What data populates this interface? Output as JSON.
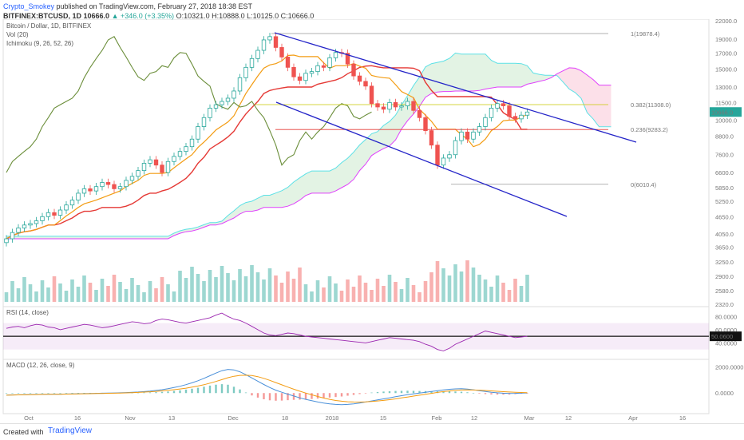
{
  "header": {
    "author": "Crypto_Smokey",
    "published_text": "published on TradingView.com, February 27, 2018 18:38 EST",
    "symbol": "BITFINEX:BTCUSD, 1D",
    "last": "10666.0",
    "change": "▲ +346.0 (+3.35%)",
    "ohlc": "O:10321.0 H:10888.0 L:10125.0 C:10666.0"
  },
  "legend": {
    "main": "Bitcoin / Dollar, 1D, BITFINEX",
    "vol": "Vol (20)",
    "ichimoku": "Ichimoku (9, 26, 52, 26)",
    "rsi": "RSI (14, close)",
    "macd": "MACD (12, 26, close, 9)"
  },
  "footer": {
    "created_with": "Created with",
    "brand": "TradingView"
  },
  "colors": {
    "up": "#26a69a",
    "down": "#ef5350",
    "channel": "#2424c8",
    "tenkan": "#e53935",
    "kijun": "#f39c12",
    "lagging": "#6b8e3a",
    "spanA": "#5ce1e6",
    "spanB": "#e040fb",
    "rsi": "#9c27b0",
    "macd": "#4a90d9",
    "signal": "#f39c12"
  },
  "chart_data": {
    "type": "candlestick",
    "title": "Bitcoin / Dollar, 1D, BITFINEX",
    "x_ticks": [
      "Oct",
      "16",
      "Nov",
      "13",
      "Dec",
      "18",
      "2018",
      "15",
      "Feb",
      "12",
      "Mar",
      "12",
      "Apr",
      "16"
    ],
    "y_ticks": [
      "22000.0",
      "19000.0",
      "17000.0",
      "15000.0",
      "13000.0",
      "11500.0",
      "10000.0",
      "8800.0",
      "7600.0",
      "6600.0",
      "5850.0",
      "5250.0",
      "4650.0",
      "4050.0",
      "3650.0",
      "3250.0",
      "2900.0",
      "2580.0",
      "2320.0"
    ],
    "last_price_label": "10666.0",
    "fib_levels": [
      {
        "label": "1(19878.4)",
        "value": 19878.4
      },
      {
        "label": "0.382(11308.0)",
        "value": 11308.0
      },
      {
        "label": "0.236(9283.2)",
        "value": 9283.2
      },
      {
        "label": "0(6010.4)",
        "value": 6010.4
      }
    ],
    "closes": [
      3900,
      4100,
      4250,
      4350,
      4400,
      4500,
      4650,
      4800,
      4700,
      4900,
      5100,
      5300,
      5600,
      5800,
      5700,
      5900,
      6100,
      6000,
      5800,
      5900,
      6200,
      6400,
      6700,
      7100,
      7300,
      7000,
      6600,
      7200,
      7500,
      7800,
      8100,
      8600,
      9500,
      10200,
      11000,
      11300,
      11600,
      11900,
      12600,
      14000,
      15200,
      16300,
      17400,
      18900,
      19400,
      17800,
      16500,
      15200,
      14100,
      13700,
      14500,
      14700,
      15400,
      15200,
      16400,
      17100,
      17000,
      15600,
      14200,
      13600,
      13100,
      11400,
      11100,
      10900,
      11500,
      11100,
      11200,
      11600,
      10800,
      10200,
      9200,
      8200,
      7000,
      7400,
      7600,
      8500,
      9100,
      8600,
      9100,
      9500,
      10200,
      11000,
      11400,
      11200,
      10300,
      10100,
      10400,
      10666
    ],
    "rsi": {
      "label": "RSI (14, close)",
      "current": "50.0600",
      "y_ticks": [
        "80.0000",
        "60.0000",
        "40.0000"
      ],
      "values": [
        62,
        64,
        65,
        63,
        66,
        68,
        67,
        64,
        63,
        60,
        62,
        64,
        66,
        68,
        67,
        65,
        63,
        64,
        66,
        68,
        70,
        72,
        71,
        69,
        70,
        74,
        76,
        75,
        73,
        71,
        70,
        72,
        74,
        76,
        78,
        82,
        85,
        80,
        76,
        74,
        70,
        65,
        60,
        55,
        52,
        51,
        53,
        55,
        54,
        52,
        50,
        49,
        48,
        47,
        46,
        45,
        44,
        43,
        42,
        41,
        40,
        42,
        44,
        46,
        48,
        47,
        46,
        45,
        44,
        42,
        38,
        35,
        30,
        28,
        32,
        38,
        42,
        46,
        50,
        54,
        58,
        56,
        54,
        52,
        50,
        48,
        49,
        50
      ]
    },
    "macd": {
      "label": "MACD (12, 26, close, 9)",
      "y_ticks": [
        "2000.0000",
        "0.0000"
      ],
      "macd": [
        -150,
        -140,
        -130,
        -120,
        -110,
        -100,
        -95,
        -90,
        -85,
        -80,
        -70,
        -60,
        -50,
        -40,
        -30,
        -20,
        -10,
        0,
        10,
        20,
        40,
        60,
        80,
        110,
        150,
        200,
        260,
        330,
        420,
        520,
        640,
        780,
        940,
        1120,
        1320,
        1520,
        1700,
        1800,
        1760,
        1620,
        1400,
        1150,
        900,
        650,
        420,
        220,
        60,
        -80,
        -220,
        -360,
        -480,
        -580,
        -680,
        -760,
        -820,
        -860,
        -880,
        -860,
        -820,
        -760,
        -680,
        -600,
        -520,
        -440,
        -360,
        -280,
        -200,
        -120,
        -60,
        0,
        60,
        120,
        180,
        240,
        290,
        320,
        330,
        300,
        250,
        180,
        120,
        60,
        20,
        -10,
        -30,
        -20,
        -5,
        10
      ],
      "signal": [
        -160,
        -150,
        -140,
        -130,
        -120,
        -112,
        -104,
        -97,
        -92,
        -86,
        -79,
        -71,
        -62,
        -53,
        -45,
        -36,
        -27,
        -18,
        -8,
        3,
        17,
        34,
        53,
        75,
        101,
        132,
        167,
        210,
        256,
        311,
        375,
        449,
        535,
        635,
        752,
        882,
        1023,
        1165,
        1278,
        1342,
        1354,
        1329,
        1244,
        1120,
        970,
        800,
        630,
        460,
        295,
        140,
        0,
        -130,
        -260,
        -380,
        -480,
        -560,
        -620,
        -660,
        -680,
        -685,
        -670,
        -640,
        -600,
        -555,
        -500,
        -440,
        -370,
        -300,
        -230,
        -160,
        -90,
        -20,
        50,
        110,
        160,
        200,
        230,
        240,
        235,
        220,
        195,
        165,
        135,
        105,
        80,
        60,
        45,
        35
      ]
    }
  }
}
